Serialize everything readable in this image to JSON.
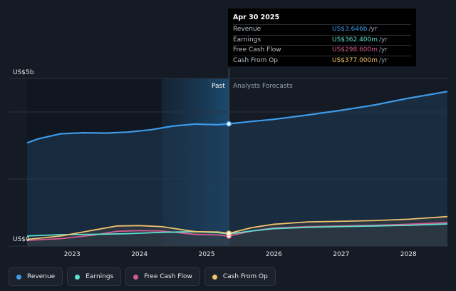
{
  "chart_data": {
    "type": "area",
    "y_unit_labels": {
      "top": "US$5b",
      "bottom": "US$0"
    },
    "x_ticks": [
      "2023",
      "2024",
      "2025",
      "2026",
      "2027",
      "2028"
    ],
    "x_range": [
      2022.25,
      2028.58
    ],
    "y_range": [
      0,
      5
    ],
    "divider_x": 2025.33,
    "highlight_start_x": 2024.33,
    "segments": {
      "past": "Past",
      "forecast": "Analysts Forecasts"
    },
    "series": [
      {
        "name": "Revenue",
        "color": "#3d9be9",
        "x": [
          2022.33,
          2022.5,
          2022.83,
          2023.17,
          2023.5,
          2023.83,
          2024.17,
          2024.5,
          2024.83,
          2025.17,
          2025.33,
          2025.67,
          2026.0,
          2026.5,
          2027.0,
          2027.5,
          2028.0,
          2028.58
        ],
        "values": [
          3.08,
          3.2,
          3.35,
          3.38,
          3.37,
          3.4,
          3.47,
          3.58,
          3.64,
          3.62,
          3.646,
          3.72,
          3.78,
          3.91,
          4.05,
          4.21,
          4.41,
          4.61
        ]
      },
      {
        "name": "Earnings",
        "color": "#5ee0d0",
        "x": [
          2022.33,
          2022.83,
          2023.33,
          2023.83,
          2024.33,
          2024.83,
          2025.17,
          2025.33,
          2025.67,
          2026.0,
          2026.5,
          2027.0,
          2027.5,
          2028.0,
          2028.58
        ],
        "values": [
          0.3,
          0.34,
          0.35,
          0.37,
          0.41,
          0.43,
          0.4,
          0.3624,
          0.45,
          0.52,
          0.56,
          0.58,
          0.6,
          0.62,
          0.66
        ]
      },
      {
        "name": "Free Cash Flow",
        "color": "#d55b8f",
        "x": [
          2022.33,
          2022.83,
          2023.33,
          2023.67,
          2024.0,
          2024.33,
          2024.83,
          2025.17,
          2025.33,
          2025.67,
          2026.0,
          2026.5,
          2027.0,
          2027.5,
          2028.0,
          2028.58
        ],
        "values": [
          0.17,
          0.22,
          0.33,
          0.44,
          0.46,
          0.45,
          0.35,
          0.33,
          0.2986,
          0.45,
          0.54,
          0.58,
          0.6,
          0.62,
          0.65,
          0.7
        ]
      },
      {
        "name": "Cash From Op",
        "color": "#f2c36b",
        "x": [
          2022.33,
          2022.83,
          2023.33,
          2023.67,
          2024.0,
          2024.33,
          2024.83,
          2025.17,
          2025.33,
          2025.67,
          2026.0,
          2026.5,
          2027.0,
          2027.5,
          2028.0,
          2028.58
        ],
        "values": [
          0.2,
          0.3,
          0.48,
          0.6,
          0.61,
          0.58,
          0.43,
          0.42,
          0.377,
          0.55,
          0.65,
          0.72,
          0.74,
          0.76,
          0.8,
          0.88
        ]
      }
    ]
  },
  "tooltip": {
    "date": "Apr 30 2025",
    "rows": [
      {
        "label": "Revenue",
        "value": "US$3.646b",
        "unit": "/yr",
        "color": "#3d9be9"
      },
      {
        "label": "Earnings",
        "value": "US$362.400m",
        "unit": "/yr",
        "color": "#5ee0d0"
      },
      {
        "label": "Free Cash Flow",
        "value": "US$298.600m",
        "unit": "/yr",
        "color": "#d55b8f"
      },
      {
        "label": "Cash From Op",
        "value": "US$377.000m",
        "unit": "/yr",
        "color": "#f2c36b"
      }
    ]
  },
  "legend": [
    {
      "label": "Revenue",
      "color": "#3d9be9"
    },
    {
      "label": "Earnings",
      "color": "#5ee0d0"
    },
    {
      "label": "Free Cash Flow",
      "color": "#d55b8f"
    },
    {
      "label": "Cash From Op",
      "color": "#f2c36b"
    }
  ]
}
